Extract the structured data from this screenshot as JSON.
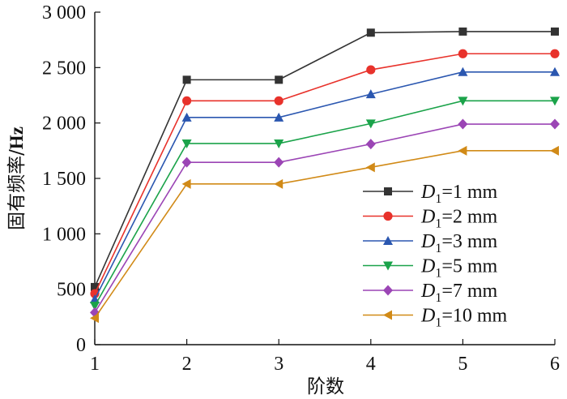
{
  "chart_data": {
    "type": "line",
    "title": "",
    "xlabel": "阶数",
    "ylabel": "固有频率/Hz",
    "ylabel_parts": {
      "prefix": "固有频率/",
      "unit": "Hz"
    },
    "x": [
      1,
      2,
      3,
      4,
      5,
      6
    ],
    "xlim": [
      1,
      6
    ],
    "ylim": [
      0,
      3000
    ],
    "x_ticks": [
      {
        "value": 1,
        "label": "1"
      },
      {
        "value": 2,
        "label": "2"
      },
      {
        "value": 3,
        "label": "3"
      },
      {
        "value": 4,
        "label": "4"
      },
      {
        "value": 5,
        "label": "5"
      },
      {
        "value": 6,
        "label": "6"
      }
    ],
    "y_ticks": [
      {
        "value": 0,
        "label": "0"
      },
      {
        "value": 500,
        "label": "500"
      },
      {
        "value": 1000,
        "label": "1 000"
      },
      {
        "value": 1500,
        "label": "1 500"
      },
      {
        "value": 2000,
        "label": "2 000"
      },
      {
        "value": 2500,
        "label": "2 500"
      },
      {
        "value": 3000,
        "label": "3 000"
      }
    ],
    "grid": false,
    "legend_position": "bottom-right",
    "series": [
      {
        "name": "D1=1 mm",
        "legend": {
          "var": "D",
          "sub": "1",
          "rest": "=1 mm"
        },
        "color": "#333333",
        "marker": "square",
        "values": [
          520,
          2390,
          2390,
          2815,
          2825,
          2825
        ]
      },
      {
        "name": "D1=2 mm",
        "legend": {
          "var": "D",
          "sub": "1",
          "rest": "=2 mm"
        },
        "color": "#e8322b",
        "marker": "circle",
        "values": [
          460,
          2200,
          2200,
          2480,
          2625,
          2625
        ]
      },
      {
        "name": "D1=3 mm",
        "legend": {
          "var": "D",
          "sub": "1",
          "rest": "=3 mm"
        },
        "color": "#2b57b0",
        "marker": "triangle-up",
        "values": [
          410,
          2050,
          2050,
          2260,
          2460,
          2460
        ]
      },
      {
        "name": "D1=5 mm",
        "legend": {
          "var": "D",
          "sub": "1",
          "rest": "=5 mm"
        },
        "color": "#1ba34a",
        "marker": "triangle-down",
        "values": [
          350,
          1815,
          1815,
          1995,
          2200,
          2200
        ]
      },
      {
        "name": "D1=7 mm",
        "legend": {
          "var": "D",
          "sub": "1",
          "rest": "=7 mm"
        },
        "color": "#9b45b5",
        "marker": "diamond",
        "values": [
          290,
          1645,
          1645,
          1810,
          1990,
          1990
        ]
      },
      {
        "name": "D1=10 mm",
        "legend": {
          "var": "D",
          "sub": "1",
          "rest": "=10 mm"
        },
        "color": "#d18a17",
        "marker": "triangle-left",
        "values": [
          240,
          1450,
          1450,
          1600,
          1750,
          1750
        ]
      }
    ]
  }
}
